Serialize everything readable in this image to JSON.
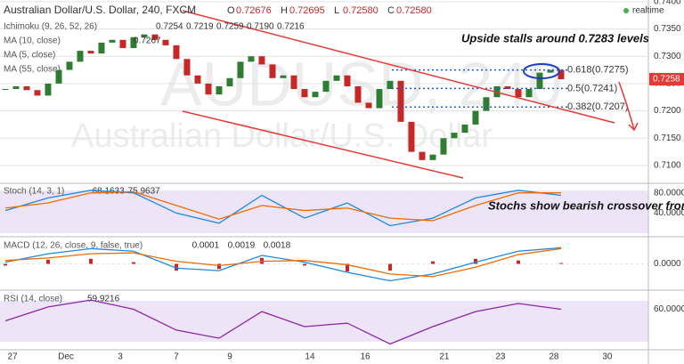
{
  "header": {
    "title": "Australian Dollar/U.S. Dollar, 240, FXCM",
    "ohlc": [
      {
        "label": "O",
        "value": "0.72676"
      },
      {
        "label": "H",
        "value": "0.72695"
      },
      {
        "label": "L",
        "value": "0.72580"
      },
      {
        "label": "C",
        "value": "0.72580"
      }
    ],
    "status": "realtime",
    "watermark": "AUDUSD, 240",
    "watermark_sub": "Australian Dollar/U.S. Dollar"
  },
  "indicators": [
    {
      "name": "Ichimoku (9, 26, 52, 26)",
      "values": [
        "0.7254",
        "0.7219",
        "0.7259",
        "0.7190",
        "0.7216"
      ],
      "colors": [
        "#0496ff",
        "#991515",
        "#008000",
        "#ff0000",
        "#000080"
      ]
    },
    {
      "name": "MA (10, close)",
      "values": [
        "0.7267"
      ],
      "colors": [
        "#000000"
      ]
    },
    {
      "name": "MA (5, close)",
      "values": [],
      "colors": []
    },
    {
      "name": "MA (55, close)",
      "values": [],
      "colors": []
    }
  ],
  "annotations": [
    "Upside stalls around 0.7283 levels",
    "Stochs show bearish crossover from o/b levels"
  ],
  "chart_data": [
    {
      "type": "candlestick",
      "color_up": "#2e7d32",
      "color_down": "#c62828",
      "values": [
        0.724,
        0.7245,
        0.7238,
        0.7228,
        0.725,
        0.7275,
        0.729,
        0.731,
        0.7305,
        0.7325,
        0.733,
        0.7315,
        0.7335,
        0.734,
        0.733,
        0.732,
        0.7295,
        0.7265,
        0.725,
        0.723,
        0.7245,
        0.726,
        0.729,
        0.73,
        0.7285,
        0.726,
        0.7265,
        0.724,
        0.7225,
        0.7235,
        0.7255,
        0.7265,
        0.7245,
        0.7215,
        0.7205,
        0.724,
        0.7255,
        0.718,
        0.7125,
        0.711,
        0.712,
        0.715,
        0.716,
        0.7175,
        0.72,
        0.7225,
        0.7245,
        0.724,
        0.7225,
        0.724,
        0.727,
        0.7275,
        0.7258
      ],
      "price_tag": {
        "value": 0.7258,
        "label": "0.7258"
      },
      "fib_levels": [
        {
          "value": 0.7275,
          "label": "0.618(0.7275)"
        },
        {
          "value": 0.7241,
          "label": "0.5(0.7241)"
        },
        {
          "value": 0.7207,
          "label": "0.382(0.7207)"
        }
      ],
      "xlim": [
        -0.5,
        60.17
      ],
      "xticks": [
        {
          "value": 0.67,
          "label": "27"
        },
        {
          "value": 5.67,
          "label": "Dec"
        },
        {
          "value": 10.75,
          "label": "3"
        },
        {
          "value": 16,
          "label": "7"
        },
        {
          "value": 21,
          "label": "9"
        },
        {
          "value": 28.5,
          "label": "14"
        },
        {
          "value": 33.67,
          "label": "16"
        },
        {
          "value": 41.08,
          "label": "21"
        },
        {
          "value": 46.33,
          "label": "23"
        },
        {
          "value": 51.33,
          "label": "28"
        },
        {
          "value": 56.33,
          "label": "30"
        }
      ],
      "ylim": [
        0.7069,
        0.7403
      ],
      "yticks": [
        {
          "value": 0.74,
          "label": "0.7400"
        },
        {
          "value": 0.735,
          "label": "0.7350"
        },
        {
          "value": 0.73,
          "label": "0.7300"
        },
        {
          "value": 0.725,
          "label": "0.7250"
        },
        {
          "value": 0.72,
          "label": "0.7200"
        },
        {
          "value": 0.715,
          "label": "0.7150"
        },
        {
          "value": 0.71,
          "label": "0.7100"
        }
      ],
      "grid": true
    },
    {
      "type": "line",
      "title": "Stoch (14, 3, 1)",
      "value_labels": [
        "68.1633",
        "75.9637"
      ],
      "x": [
        0,
        4,
        8,
        12,
        16,
        20,
        24,
        28,
        32,
        36,
        40,
        44,
        48,
        52
      ],
      "series": [
        {
          "color": "#1e88e5",
          "values": [
            45,
            70,
            85,
            80,
            40,
            20,
            75,
            30,
            60,
            15,
            30,
            70,
            85,
            75
          ]
        },
        {
          "color": "#ef6c00",
          "values": [
            50,
            60,
            80,
            82,
            55,
            28,
            55,
            45,
            50,
            30,
            25,
            55,
            80,
            80
          ]
        }
      ],
      "ylim": [
        -5,
        97
      ],
      "yticks": [
        {
          "value": 80,
          "label": "80.0000"
        },
        {
          "value": 40,
          "label": "40.0000"
        }
      ],
      "grid": true
    },
    {
      "type": "line",
      "title": "MACD (12, 26, close, 9, false, true)",
      "value_labels": [
        "0.0001",
        "0.0019",
        "0.0018"
      ],
      "x": [
        0,
        4,
        8,
        12,
        16,
        20,
        24,
        28,
        32,
        36,
        40,
        44,
        48,
        52
      ],
      "bars": {
        "color": "#c62828",
        "values": [
          -0.0002,
          0.0005,
          0.0006,
          0.0002,
          -0.0008,
          -0.0006,
          0.0007,
          -0.0002,
          -0.0009,
          -0.0008,
          0.0003,
          0.0006,
          0.0004,
          0.0001
        ]
      },
      "series": [
        {
          "color": "#1e88e5",
          "values": [
            0.0002,
            0.0012,
            0.0018,
            0.0015,
            -0.0005,
            -0.0008,
            0.001,
            0.0002,
            -0.001,
            -0.002,
            -0.0012,
            0.0002,
            0.0015,
            0.0019
          ]
        },
        {
          "color": "#ef6c00",
          "values": [
            0.0004,
            0.0007,
            0.0012,
            0.0013,
            0.0003,
            -0.0002,
            0.0003,
            0.0004,
            -0.0001,
            -0.0012,
            -0.0015,
            -0.0004,
            0.0011,
            0.0018
          ]
        }
      ],
      "ylim": [
        -0.003,
        0.003
      ],
      "yticks": [
        {
          "value": 0,
          "label": "0.0000"
        }
      ],
      "grid": true
    },
    {
      "type": "line",
      "title": "RSI (14, close)",
      "value_labels": [
        "59.9216"
      ],
      "x": [
        0,
        4,
        8,
        12,
        16,
        20,
        24,
        28,
        32,
        36,
        40,
        44,
        48,
        52
      ],
      "series": [
        {
          "color": "#8e24aa",
          "values": [
            50,
            62,
            68,
            60,
            42,
            35,
            58,
            45,
            48,
            30,
            45,
            58,
            65,
            60
          ]
        }
      ],
      "ylim": [
        25,
        75
      ],
      "yticks": [
        {
          "value": 60,
          "label": "60.0000"
        }
      ],
      "grid": true
    }
  ]
}
